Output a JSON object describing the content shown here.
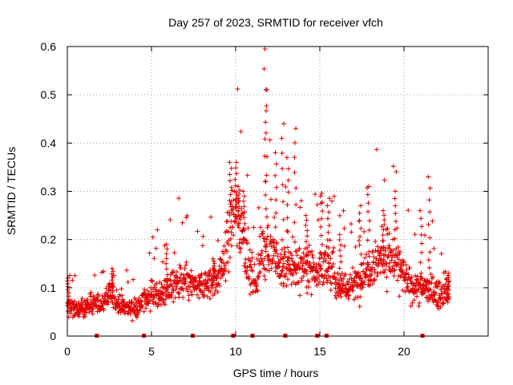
{
  "chart_data": {
    "type": "scatter",
    "title": "Day 257 of 2023, SRMTID for receiver vfch",
    "xlabel": "GPS time / hours",
    "ylabel": "SRMTID / TECUs",
    "xlim": [
      0,
      25
    ],
    "ylim": [
      0,
      0.6
    ],
    "xticks": [
      0,
      5,
      10,
      15,
      20
    ],
    "yticks": [
      0,
      0.1,
      0.2,
      0.3,
      0.4,
      0.5,
      0.6
    ],
    "xtick_labels": [
      "0",
      "5",
      "10",
      "15",
      "20"
    ],
    "ytick_labels": [
      "0",
      "0.1",
      "0.2",
      "0.3",
      "0.4",
      "0.5",
      "0.6"
    ],
    "grid": true,
    "marker": "+",
    "series_color": "#e00000",
    "trend_points": [
      [
        0.0,
        0.065
      ],
      [
        0.6,
        0.055
      ],
      [
        1.2,
        0.06
      ],
      [
        1.6,
        0.07
      ],
      [
        2.0,
        0.06
      ],
      [
        2.6,
        0.09
      ],
      [
        3.0,
        0.065
      ],
      [
        3.6,
        0.06
      ],
      [
        4.2,
        0.06
      ],
      [
        4.6,
        0.075
      ],
      [
        5.0,
        0.09
      ],
      [
        5.6,
        0.085
      ],
      [
        6.0,
        0.1
      ],
      [
        6.6,
        0.11
      ],
      [
        7.2,
        0.11
      ],
      [
        7.8,
        0.1
      ],
      [
        8.4,
        0.11
      ],
      [
        9.0,
        0.12
      ],
      [
        9.4,
        0.17
      ],
      [
        9.8,
        0.26
      ],
      [
        10.4,
        0.22
      ],
      [
        10.8,
        0.14
      ],
      [
        11.2,
        0.11
      ],
      [
        11.6,
        0.19
      ],
      [
        12.0,
        0.18
      ],
      [
        12.4,
        0.15
      ],
      [
        13.0,
        0.14
      ],
      [
        13.6,
        0.14
      ],
      [
        14.2,
        0.15
      ],
      [
        14.8,
        0.14
      ],
      [
        15.2,
        0.14
      ],
      [
        15.6,
        0.14
      ],
      [
        16.0,
        0.11
      ],
      [
        16.6,
        0.1
      ],
      [
        17.2,
        0.11
      ],
      [
        17.8,
        0.14
      ],
      [
        18.4,
        0.16
      ],
      [
        19.0,
        0.17
      ],
      [
        19.6,
        0.15
      ],
      [
        20.2,
        0.11
      ],
      [
        20.8,
        0.1
      ],
      [
        21.4,
        0.1
      ],
      [
        21.8,
        0.09
      ],
      [
        22.4,
        0.085
      ],
      [
        22.7,
        0.09
      ]
    ],
    "spikes": [
      [
        0.05,
        0.12
      ],
      [
        2.7,
        0.14
      ],
      [
        5.9,
        0.19
      ],
      [
        8.7,
        0.16
      ],
      [
        9.7,
        0.36
      ],
      [
        10.0,
        0.36
      ],
      [
        10.2,
        0.31
      ],
      [
        10.5,
        0.3
      ],
      [
        11.75,
        0.595
      ],
      [
        11.8,
        0.51
      ],
      [
        12.4,
        0.38
      ],
      [
        12.8,
        0.44
      ],
      [
        13.1,
        0.37
      ],
      [
        13.55,
        0.43
      ],
      [
        14.2,
        0.25
      ],
      [
        15.1,
        0.29
      ],
      [
        15.5,
        0.27
      ],
      [
        16.2,
        0.21
      ],
      [
        17.4,
        0.27
      ],
      [
        17.9,
        0.31
      ],
      [
        18.8,
        0.26
      ],
      [
        19.5,
        0.3
      ],
      [
        21.0,
        0.26
      ],
      [
        21.5,
        0.33
      ],
      [
        22.6,
        0.13
      ]
    ],
    "gap_markers_hours": [
      1.75,
      4.55,
      7.45,
      9.85,
      11.0,
      12.95,
      14.85,
      15.4,
      21.1
    ]
  }
}
